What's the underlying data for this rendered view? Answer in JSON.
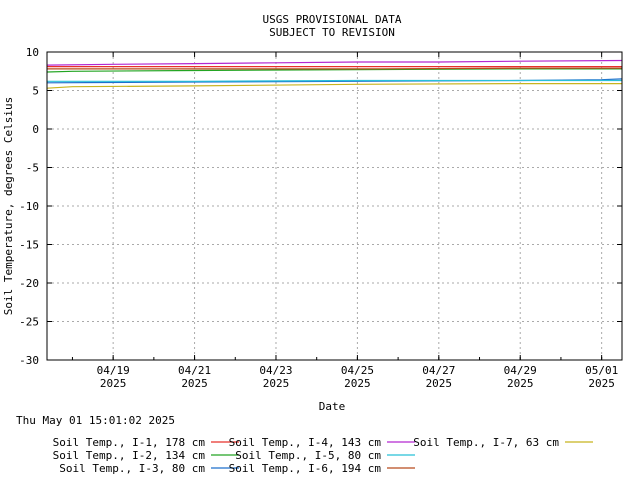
{
  "header": {
    "line1": "USGS PROVISIONAL DATA",
    "line2": "SUBJECT TO REVISION"
  },
  "timestamp": "Thu May 01 15:01:02 2025",
  "chart_data": {
    "type": "line",
    "xlabel": "Date",
    "ylabel": "Soil Temperature, degrees Celsius",
    "ylim": [
      -30,
      10
    ],
    "yticks": [
      10,
      5,
      0,
      -5,
      -10,
      -15,
      -20,
      -25,
      -30
    ],
    "xlim": [
      "2025-04-17T09:00",
      "2025-05-01T12:00"
    ],
    "xticks": [
      {
        "date": "2025-04-19",
        "line1": "04/19",
        "line2": "2025"
      },
      {
        "date": "2025-04-21",
        "line1": "04/21",
        "line2": "2025"
      },
      {
        "date": "2025-04-23",
        "line1": "04/23",
        "line2": "2025"
      },
      {
        "date": "2025-04-25",
        "line1": "04/25",
        "line2": "2025"
      },
      {
        "date": "2025-04-27",
        "line1": "04/27",
        "line2": "2025"
      },
      {
        "date": "2025-04-29",
        "line1": "04/29",
        "line2": "2025"
      },
      {
        "date": "2025-05-01",
        "line1": "05/01",
        "line2": "2025"
      }
    ],
    "grid": true,
    "legend_position": "bottom",
    "series": [
      {
        "name": "Soil Temp., I-1, 178 cm",
        "color": "#e8302a",
        "x": [
          "2025-04-17T09:00",
          "2025-04-21T00:00",
          "2025-04-25T00:00",
          "2025-04-29T00:00",
          "2025-05-01T12:00"
        ],
        "y": [
          8.1,
          8.1,
          8.1,
          8.1,
          8.1
        ]
      },
      {
        "name": "Soil Temp., I-2, 134 cm",
        "color": "#23a523",
        "x": [
          "2025-04-17T09:00",
          "2025-04-18T00:00",
          "2025-04-21T00:00",
          "2025-04-25T00:00",
          "2025-04-29T00:00",
          "2025-05-01T12:00"
        ],
        "y": [
          7.4,
          7.5,
          7.6,
          7.7,
          7.8,
          7.8
        ]
      },
      {
        "name": "Soil Temp., I-3, 80 cm",
        "color": "#1f6fcc",
        "x": [
          "2025-04-17T09:00",
          "2025-04-21T00:00",
          "2025-04-25T00:00",
          "2025-04-29T00:00",
          "2025-05-01T00:00",
          "2025-05-01T12:00"
        ],
        "y": [
          6.0,
          6.1,
          6.2,
          6.3,
          6.4,
          6.5
        ]
      },
      {
        "name": "Soil Temp., I-4, 143 cm",
        "color": "#b428d0",
        "x": [
          "2025-04-17T09:00",
          "2025-04-19T00:00",
          "2025-04-21T00:00",
          "2025-04-23T00:00",
          "2025-04-25T00:00",
          "2025-04-27T00:00",
          "2025-04-29T00:00",
          "2025-05-01T12:00"
        ],
        "y": [
          8.3,
          8.4,
          8.5,
          8.6,
          8.7,
          8.7,
          8.8,
          8.9
        ]
      },
      {
        "name": "Soil Temp., I-5, 80 cm",
        "color": "#28c0d8",
        "x": [
          "2025-04-17T09:00",
          "2025-04-21T00:00",
          "2025-04-25T00:00",
          "2025-04-29T00:00",
          "2025-05-01T12:00"
        ],
        "y": [
          6.2,
          6.2,
          6.3,
          6.3,
          6.3
        ]
      },
      {
        "name": "Soil Temp., I-6, 194 cm",
        "color": "#b84a1c",
        "x": [
          "2025-04-17T09:00",
          "2025-04-21T00:00",
          "2025-04-25T00:00",
          "2025-04-29T00:00",
          "2025-05-01T12:00"
        ],
        "y": [
          7.8,
          7.8,
          7.8,
          7.9,
          7.9
        ]
      },
      {
        "name": "Soil Temp., I-7, 63 cm",
        "color": "#c8b41e",
        "x": [
          "2025-04-17T09:00",
          "2025-04-18T00:00",
          "2025-04-21T00:00",
          "2025-04-25T00:00",
          "2025-04-29T00:00",
          "2025-05-01T12:00"
        ],
        "y": [
          5.3,
          5.5,
          5.6,
          5.8,
          5.9,
          5.9
        ]
      }
    ]
  }
}
